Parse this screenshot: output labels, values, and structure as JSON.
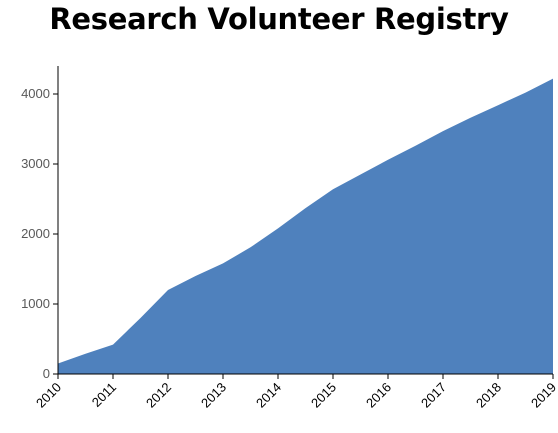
{
  "chart_data": {
    "type": "area",
    "title": "Research Volunteer Registry",
    "xlabel": "",
    "ylabel": "",
    "xlim": [
      2010,
      2019
    ],
    "ylim": [
      0,
      4400
    ],
    "grid": false,
    "y_ticks": [
      0,
      1000,
      2000,
      3000,
      4000
    ],
    "x_ticks": [
      "2010",
      "2011",
      "2012",
      "2013",
      "2014",
      "2015",
      "2016",
      "2017",
      "2018",
      "2019"
    ],
    "color": "#4f81bd",
    "series": [
      {
        "x": [
          2010.0,
          2010.5,
          2011.0,
          2011.5,
          2012.0,
          2012.5,
          2013.0,
          2013.5,
          2014.0,
          2014.5,
          2015.0,
          2015.5,
          2016.0,
          2016.5,
          2017.0,
          2017.5,
          2018.0,
          2018.5,
          2019.0
        ],
        "values": [
          150,
          290,
          420,
          800,
          1200,
          1400,
          1580,
          1810,
          2080,
          2370,
          2640,
          2850,
          3060,
          3260,
          3470,
          3660,
          3840,
          4020,
          4220
        ]
      }
    ]
  }
}
